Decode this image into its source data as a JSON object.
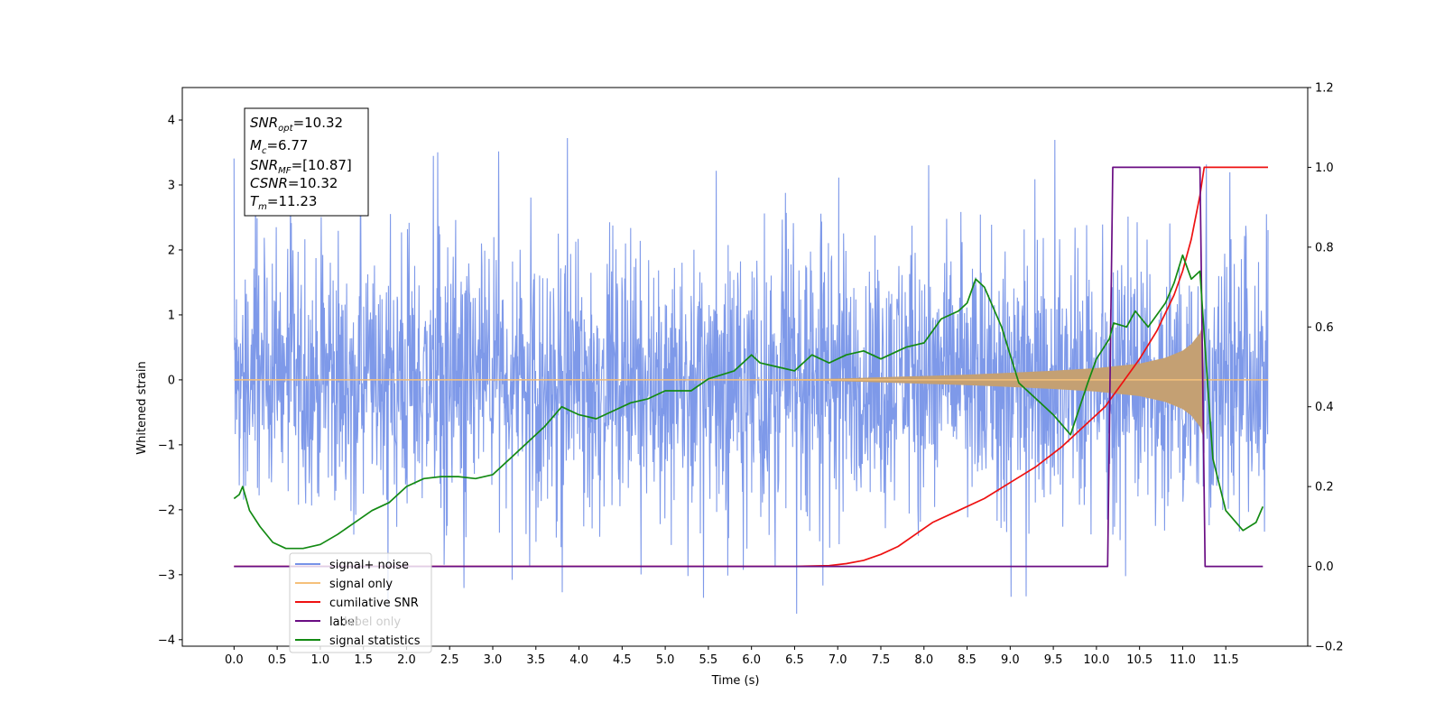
{
  "chart_data": {
    "type": "line",
    "xlabel": "Time (s)",
    "ylabel": "Whitened strain",
    "xlim": [
      -0.6,
      12.45
    ],
    "ylim": [
      -4.1,
      4.5
    ],
    "y2lim": [
      -0.2,
      1.2
    ],
    "x_ticks": [
      "0.0",
      "0.5",
      "1.0",
      "1.5",
      "2.0",
      "2.5",
      "3.0",
      "3.5",
      "4.0",
      "4.5",
      "5.0",
      "5.5",
      "6.0",
      "6.5",
      "7.0",
      "7.5",
      "8.0",
      "8.5",
      "9.0",
      "9.5",
      "10.0",
      "10.5",
      "11.0",
      "11.5"
    ],
    "y_ticks": [
      "−4",
      "−3",
      "−2",
      "−1",
      "0",
      "1",
      "2",
      "3",
      "4"
    ],
    "y2_ticks": [
      "−0.2",
      "0.0",
      "0.2",
      "0.4",
      "0.6",
      "0.8",
      "1.0",
      "1.2"
    ],
    "grid": false,
    "legend_position": "lower-left",
    "annotation": [
      {
        "main": "SNR",
        "sub": "opt",
        "value": "=10.32"
      },
      {
        "main": "M",
        "sub": "c",
        "value": "=6.77"
      },
      {
        "main": "SNR",
        "sub": "MF",
        "value": "=[10.87]"
      },
      {
        "main": "CSNR",
        "sub": "",
        "value": "=10.32"
      },
      {
        "main": "T",
        "sub": "m",
        "value": "=11.23"
      }
    ],
    "series": [
      {
        "name": "signal+ noise",
        "color": "#7793e8",
        "axis": "left",
        "description_values": {
          "t_start": 0.0,
          "t_end": 11.99,
          "typical_range": [
            -2.9,
            2.9
          ],
          "extremes": [
            -3.6,
            4.1
          ]
        }
      },
      {
        "name": "signal only",
        "color": "#f5c07a",
        "axis": "left",
        "envelope": [
          [
            0.0,
            0.0
          ],
          [
            6.0,
            0.0
          ],
          [
            7.0,
            0.02
          ],
          [
            8.0,
            0.06
          ],
          [
            8.5,
            0.08
          ],
          [
            9.0,
            0.11
          ],
          [
            9.5,
            0.14
          ],
          [
            10.0,
            0.18
          ],
          [
            10.5,
            0.25
          ],
          [
            10.8,
            0.34
          ],
          [
            11.0,
            0.45
          ],
          [
            11.1,
            0.55
          ],
          [
            11.2,
            0.72
          ],
          [
            11.23,
            0.85
          ],
          [
            11.25,
            0.0
          ],
          [
            11.99,
            0.0
          ]
        ]
      },
      {
        "name": "cumilative SNR",
        "color": "#ee1111",
        "axis": "right",
        "points": [
          [
            0.0,
            0.0
          ],
          [
            6.5,
            0.0
          ],
          [
            6.9,
            0.002
          ],
          [
            7.1,
            0.007
          ],
          [
            7.3,
            0.015
          ],
          [
            7.5,
            0.03
          ],
          [
            7.7,
            0.05
          ],
          [
            7.9,
            0.08
          ],
          [
            8.1,
            0.11
          ],
          [
            8.4,
            0.14
          ],
          [
            8.7,
            0.17
          ],
          [
            9.0,
            0.21
          ],
          [
            9.3,
            0.25
          ],
          [
            9.6,
            0.3
          ],
          [
            9.9,
            0.36
          ],
          [
            10.1,
            0.4
          ],
          [
            10.3,
            0.46
          ],
          [
            10.5,
            0.52
          ],
          [
            10.7,
            0.59
          ],
          [
            10.9,
            0.68
          ],
          [
            11.0,
            0.74
          ],
          [
            11.1,
            0.82
          ],
          [
            11.2,
            0.93
          ],
          [
            11.25,
            1.0
          ],
          [
            11.99,
            1.0
          ]
        ]
      },
      {
        "name": "label",
        "color": "#6a0d83",
        "axis": "right",
        "points": [
          [
            0.0,
            0.0
          ],
          [
            10.13,
            0.0
          ],
          [
            10.19,
            1.0
          ],
          [
            11.2,
            1.0
          ],
          [
            11.26,
            0.0
          ],
          [
            11.93,
            0.0
          ]
        ]
      },
      {
        "name": "label only",
        "color": "#ffffff",
        "axis": "right",
        "points": []
      },
      {
        "name": "signal statistics",
        "color": "#138a13",
        "axis": "right",
        "points": [
          [
            0.0,
            0.17
          ],
          [
            0.06,
            0.18
          ],
          [
            0.1,
            0.2
          ],
          [
            0.18,
            0.14
          ],
          [
            0.3,
            0.1
          ],
          [
            0.45,
            0.06
          ],
          [
            0.6,
            0.045
          ],
          [
            0.8,
            0.045
          ],
          [
            1.0,
            0.055
          ],
          [
            1.2,
            0.08
          ],
          [
            1.4,
            0.11
          ],
          [
            1.6,
            0.14
          ],
          [
            1.8,
            0.16
          ],
          [
            2.0,
            0.2
          ],
          [
            2.2,
            0.22
          ],
          [
            2.4,
            0.225
          ],
          [
            2.6,
            0.225
          ],
          [
            2.8,
            0.22
          ],
          [
            3.0,
            0.23
          ],
          [
            3.2,
            0.27
          ],
          [
            3.4,
            0.31
          ],
          [
            3.6,
            0.35
          ],
          [
            3.8,
            0.4
          ],
          [
            4.0,
            0.38
          ],
          [
            4.2,
            0.37
          ],
          [
            4.4,
            0.39
          ],
          [
            4.6,
            0.41
          ],
          [
            4.8,
            0.42
          ],
          [
            5.0,
            0.44
          ],
          [
            5.3,
            0.44
          ],
          [
            5.5,
            0.47
          ],
          [
            5.8,
            0.49
          ],
          [
            6.0,
            0.53
          ],
          [
            6.1,
            0.51
          ],
          [
            6.3,
            0.5
          ],
          [
            6.5,
            0.49
          ],
          [
            6.7,
            0.53
          ],
          [
            6.9,
            0.51
          ],
          [
            7.1,
            0.53
          ],
          [
            7.3,
            0.54
          ],
          [
            7.5,
            0.52
          ],
          [
            7.7,
            0.54
          ],
          [
            7.8,
            0.55
          ],
          [
            8.0,
            0.56
          ],
          [
            8.2,
            0.62
          ],
          [
            8.4,
            0.64
          ],
          [
            8.5,
            0.66
          ],
          [
            8.6,
            0.72
          ],
          [
            8.7,
            0.7
          ],
          [
            8.9,
            0.6
          ],
          [
            9.1,
            0.46
          ],
          [
            9.3,
            0.42
          ],
          [
            9.5,
            0.38
          ],
          [
            9.7,
            0.33
          ],
          [
            9.9,
            0.46
          ],
          [
            10.0,
            0.52
          ],
          [
            10.15,
            0.57
          ],
          [
            10.2,
            0.61
          ],
          [
            10.35,
            0.6
          ],
          [
            10.45,
            0.64
          ],
          [
            10.6,
            0.6
          ],
          [
            10.8,
            0.66
          ],
          [
            10.9,
            0.71
          ],
          [
            11.0,
            0.78
          ],
          [
            11.1,
            0.72
          ],
          [
            11.2,
            0.74
          ],
          [
            11.25,
            0.58
          ],
          [
            11.35,
            0.27
          ],
          [
            11.5,
            0.14
          ],
          [
            11.7,
            0.09
          ],
          [
            11.85,
            0.11
          ],
          [
            11.93,
            0.15
          ]
        ]
      }
    ]
  },
  "colors": {
    "noise_fill": "#7793e8",
    "signal_fill": "#c4a073",
    "signal_line": "#f5c07a",
    "cumulative": "#ee1111",
    "label": "#6a0d83",
    "statistics": "#138a13"
  }
}
